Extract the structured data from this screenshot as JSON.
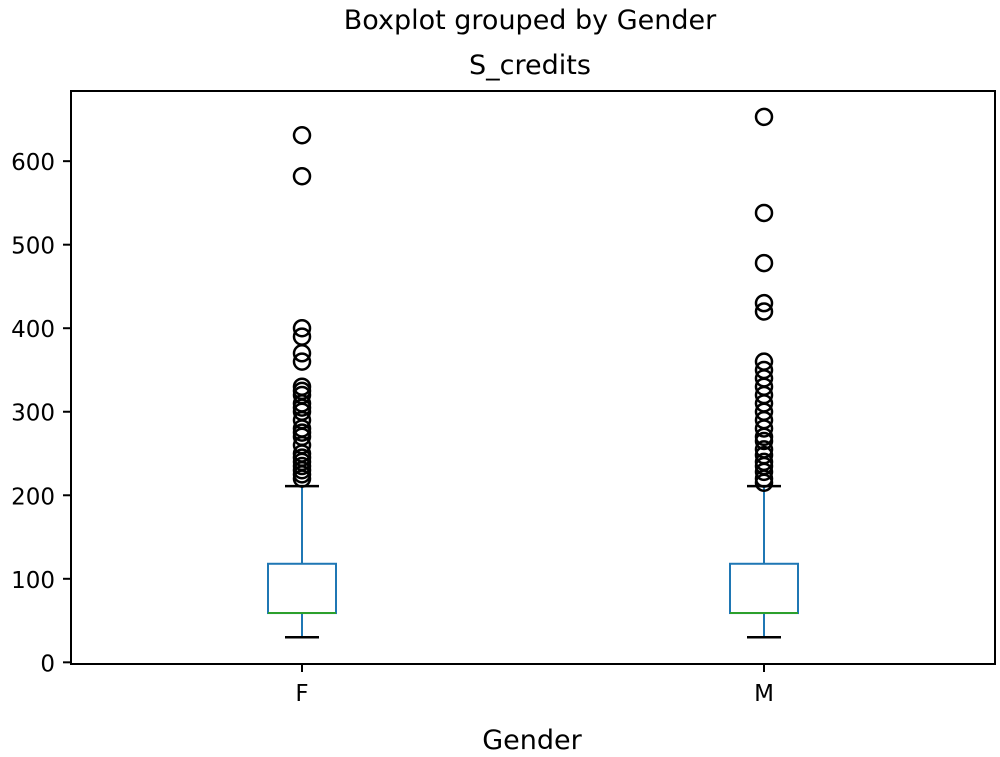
{
  "chart_data": {
    "type": "boxplot",
    "title": "Boxplot grouped by Gender",
    "subtitle": "S_credits",
    "xlabel": "Gender",
    "ylabel": "",
    "ylim": [
      -2,
      684
    ],
    "yticks": [
      0,
      100,
      200,
      300,
      400,
      500,
      600
    ],
    "grid": false,
    "colors": {
      "box": "#1f77b4",
      "median": "#2ca02c",
      "whisker": "#1f77b4",
      "cap": "#000000",
      "flier": "#000000",
      "axes": "#000000"
    },
    "categories": [
      {
        "label": "F",
        "whisker_low": 30,
        "q1": 59,
        "median": 59,
        "q3": 118,
        "whisker_high": 211,
        "outliers": [
          220,
          225,
          230,
          235,
          240,
          245,
          250,
          260,
          270,
          275,
          280,
          290,
          300,
          305,
          310,
          320,
          325,
          330,
          360,
          370,
          390,
          400,
          582,
          631
        ]
      },
      {
        "label": "M",
        "whisker_low": 30,
        "q1": 59,
        "median": 59,
        "q3": 118,
        "whisker_high": 211,
        "outliers": [
          215,
          220,
          228,
          235,
          240,
          248,
          255,
          265,
          270,
          280,
          290,
          300,
          310,
          320,
          330,
          340,
          350,
          360,
          420,
          430,
          478,
          538,
          653
        ]
      }
    ]
  }
}
